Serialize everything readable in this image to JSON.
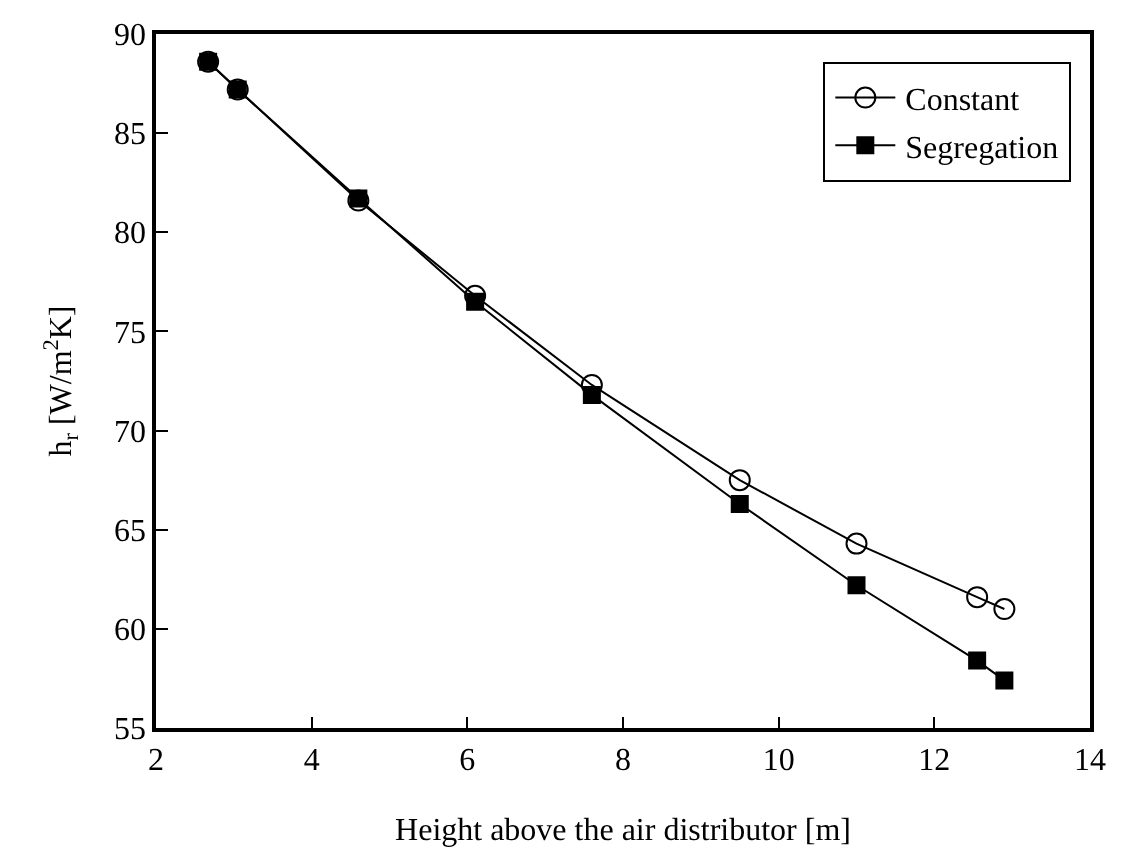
{
  "chart_data": {
    "type": "line",
    "xlabel": "Height above the air distributor [m]",
    "ylabel": "h$_{r}$ [W/m$^{2}$K]",
    "xlim": [
      2,
      14
    ],
    "xticks": [
      2,
      4,
      6,
      8,
      10,
      12,
      14
    ],
    "ylim": [
      55,
      90
    ],
    "yticks": [
      55,
      60,
      65,
      70,
      75,
      80,
      85,
      90
    ],
    "x": [
      2.67,
      3.05,
      4.6,
      6.1,
      7.6,
      9.5,
      11.0,
      12.55,
      12.9
    ],
    "series": [
      {
        "name": "Constant",
        "color": "#000000",
        "marker": "circle",
        "values": [
          88.6,
          87.2,
          81.6,
          76.8,
          72.3,
          67.5,
          64.3,
          61.6,
          61.0
        ]
      },
      {
        "name": "Segregation",
        "color": "#000000",
        "marker": "square",
        "values": [
          88.6,
          87.2,
          81.7,
          76.5,
          71.8,
          66.3,
          62.2,
          58.4,
          57.4
        ]
      }
    ],
    "grid": false,
    "legend": "top right",
    "line_style": "solid"
  }
}
